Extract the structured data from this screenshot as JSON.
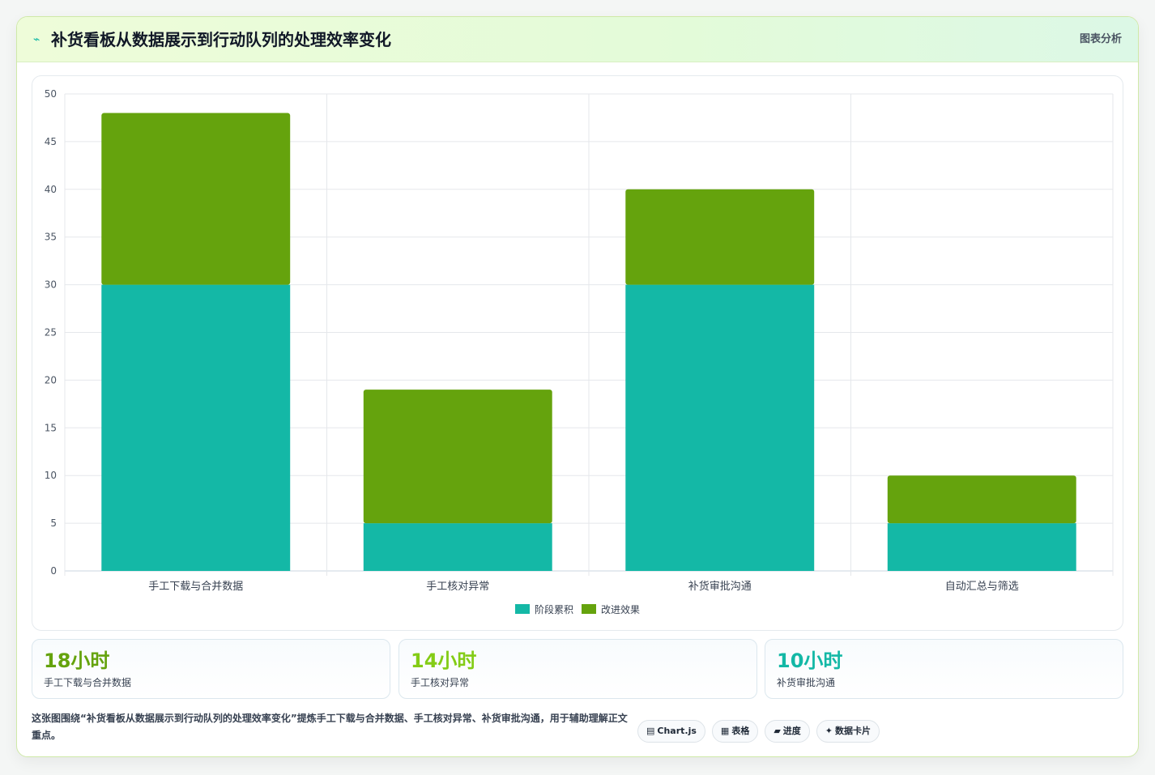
{
  "header": {
    "icon": "chart-line-icon",
    "title": "补货看板从数据展示到行动队列的处理效率变化",
    "right_label": "图表分析"
  },
  "chart_data": {
    "type": "bar",
    "stacked": true,
    "categories": [
      "手工下载与合并数据",
      "手工核对异常",
      "补货审批沟通",
      "自动汇总与筛选"
    ],
    "series": [
      {
        "name": "阶段累积",
        "values": [
          30,
          5,
          30,
          5
        ],
        "color": "#14b8a6"
      },
      {
        "name": "改进效果",
        "values": [
          18,
          14,
          10,
          5
        ],
        "color": "#65a30d"
      }
    ],
    "ylim": [
      0,
      50
    ],
    "yticks": [
      0,
      5,
      10,
      15,
      20,
      25,
      30,
      35,
      40,
      45,
      50
    ],
    "grid": true,
    "legend": "bottom"
  },
  "stats": [
    {
      "value": "18小时",
      "label": "手工下载与合并数据",
      "color": "#65a30d"
    },
    {
      "value": "14小时",
      "label": "手工核对异常",
      "color": "#84cc16"
    },
    {
      "value": "10小时",
      "label": "补货审批沟通",
      "color": "#14b8a6"
    }
  ],
  "description": "这张图围绕“补货看板从数据展示到行动队列的处理效率变化”提炼手工下载与合并数据、手工核对异常、补货审批沟通，用于辅助理解正文重点。",
  "tags": [
    {
      "icon": "▤",
      "label": "Chart.js"
    },
    {
      "icon": "▦",
      "label": "表格"
    },
    {
      "icon": "▰",
      "label": "进度"
    },
    {
      "icon": "✦",
      "label": "数据卡片"
    }
  ]
}
